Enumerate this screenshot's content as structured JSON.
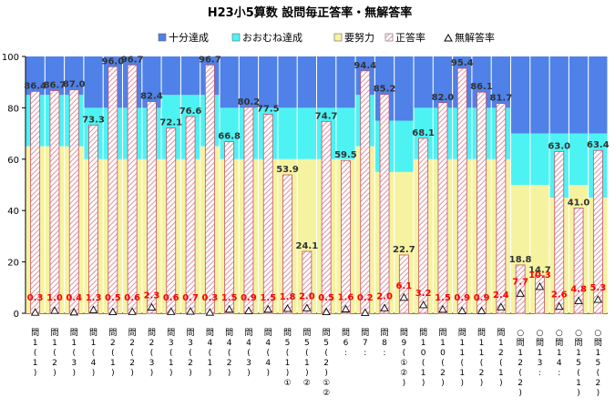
{
  "chart_data": {
    "type": "bar",
    "title": "H23小5算数 設問毎正答率・無解答率",
    "ylim": [
      0,
      100
    ],
    "yticks": [
      0,
      20,
      40,
      60,
      80,
      100
    ],
    "grid": false,
    "legend_position": "top",
    "legend": [
      {
        "name": "十分達成",
        "color": "#4F81E8",
        "pattern": "solid"
      },
      {
        "name": "おおむね達成",
        "color": "#4DF3F3",
        "pattern": "solid"
      },
      {
        "name": "要努力",
        "color": "#F6F3A0",
        "pattern": "solid"
      },
      {
        "name": "正答率",
        "color": "#E08A9A",
        "pattern": "hatch"
      },
      {
        "name": "無解答率",
        "color": "#000000",
        "pattern": "triangle"
      }
    ],
    "categories": [
      [
        "問",
        "1",
        "(",
        "1",
        ")"
      ],
      [
        "問",
        "1",
        "(",
        "2",
        ")"
      ],
      [
        "問",
        "1",
        "(",
        "3",
        ")"
      ],
      [
        "問",
        "1",
        "(",
        "4",
        ")"
      ],
      [
        "問",
        "2",
        "(",
        "1",
        ")"
      ],
      [
        "問",
        "2",
        "(",
        "2",
        ")"
      ],
      [
        "問",
        "2",
        "(",
        "3",
        ")"
      ],
      [
        "問",
        "3",
        "(",
        "1",
        ")"
      ],
      [
        "問",
        "3",
        "(",
        "2",
        ")"
      ],
      [
        "問",
        "4",
        "(",
        "1",
        ")"
      ],
      [
        "問",
        "4",
        "(",
        "2",
        ")"
      ],
      [
        "問",
        "4",
        "(",
        "3",
        ")"
      ],
      [
        "問",
        "4",
        "(",
        "4",
        ")"
      ],
      [
        "問",
        "5",
        "(",
        "1",
        ")",
        "①"
      ],
      [
        "問",
        "5",
        "(",
        "1",
        ")",
        "②"
      ],
      [
        "問",
        "5",
        "(",
        "2",
        ")",
        "①",
        "②"
      ],
      [
        "問",
        "6",
        ":"
      ],
      [
        "問",
        "7",
        ":"
      ],
      [
        "問",
        "8",
        ":"
      ],
      [
        "問",
        "9",
        "(",
        "①",
        "②",
        ")"
      ],
      [
        "問",
        "1",
        "0",
        "(",
        "1",
        ")"
      ],
      [
        "問",
        "1",
        "0",
        "(",
        "2",
        ")"
      ],
      [
        "問",
        "1",
        "1",
        "(",
        "1",
        ")"
      ],
      [
        "問",
        "1",
        "1",
        "(",
        "2",
        ")"
      ],
      [
        "問",
        "1",
        "2",
        "(",
        "1",
        ")"
      ],
      [
        "○",
        "問",
        "1",
        "2",
        "(",
        "2",
        ")"
      ],
      [
        "○",
        "問",
        "1",
        "3",
        ":"
      ],
      [
        "○",
        "問",
        "1",
        "4",
        ":"
      ],
      [
        "○",
        "問",
        "1",
        "5",
        "(",
        "1",
        ")"
      ],
      [
        "○",
        "問",
        "1",
        "5",
        "(",
        "2",
        ")"
      ]
    ],
    "series": [
      {
        "name": "要努力",
        "values": [
          65,
          65,
          65,
          60,
          60,
          60,
          60,
          60,
          60,
          65,
          60,
          60,
          60,
          60,
          60,
          60,
          60,
          65,
          55,
          55,
          60,
          60,
          60,
          60,
          60,
          50,
          50,
          45,
          50,
          45
        ]
      },
      {
        "name": "おおむね達成",
        "values": [
          85,
          85,
          85,
          80,
          80,
          80,
          80,
          85,
          85,
          85,
          80,
          80,
          80,
          80,
          80,
          80,
          80,
          85,
          75,
          75,
          80,
          80,
          80,
          80,
          80,
          70,
          70,
          70,
          70,
          70
        ]
      },
      {
        "name": "十分達成",
        "values": [
          100,
          100,
          100,
          100,
          100,
          100,
          100,
          100,
          100,
          100,
          100,
          100,
          100,
          100,
          100,
          100,
          100,
          100,
          100,
          100,
          100,
          100,
          100,
          100,
          100,
          100,
          100,
          100,
          100,
          100
        ]
      },
      {
        "name": "正答率",
        "values": [
          86.4,
          86.7,
          87.0,
          73.3,
          96.0,
          96.7,
          82.4,
          72.1,
          76.6,
          96.7,
          66.8,
          80.2,
          77.5,
          53.9,
          24.1,
          74.7,
          59.5,
          94.4,
          85.2,
          22.7,
          68.1,
          82.0,
          95.4,
          86.1,
          81.7,
          18.8,
          14.7,
          63.0,
          41.0,
          63.4
        ]
      },
      {
        "name": "無解答率",
        "values": [
          0.3,
          1.0,
          0.4,
          1.3,
          0.5,
          0.6,
          2.3,
          0.6,
          0.7,
          0.3,
          1.5,
          0.9,
          1.5,
          1.8,
          2.0,
          0.5,
          1.6,
          0.2,
          2.0,
          6.1,
          3.2,
          1.5,
          0.9,
          0.9,
          2.4,
          7.7,
          10.3,
          2.6,
          4.8,
          5.3
        ]
      }
    ]
  }
}
